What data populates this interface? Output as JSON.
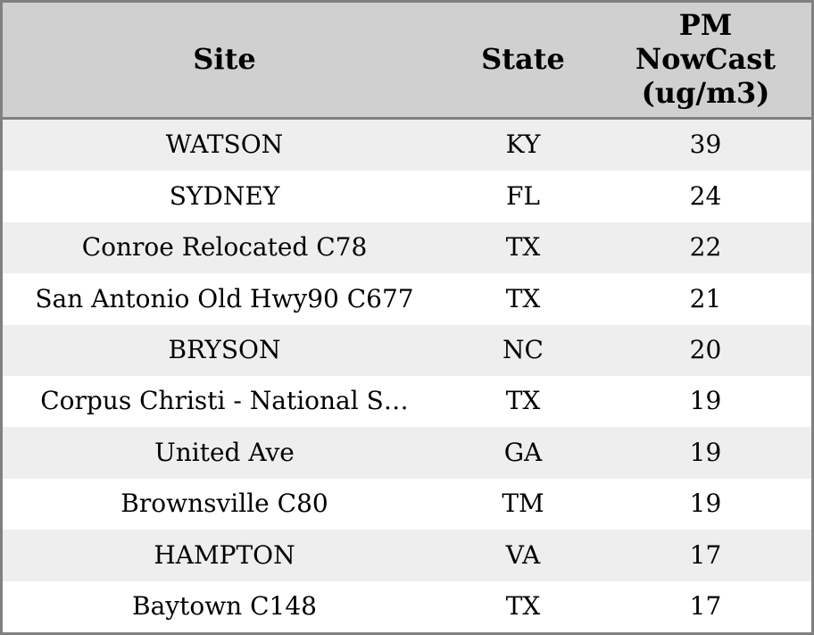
{
  "chart_data": {
    "type": "table",
    "columns": [
      "Site",
      "State",
      "PM NowCast (ug/m3)"
    ],
    "rows": [
      {
        "site": "WATSON",
        "state": "KY",
        "pm_nowcast": "39"
      },
      {
        "site": "SYDNEY",
        "state": "FL",
        "pm_nowcast": "24"
      },
      {
        "site": "Conroe Relocated C78",
        "state": "TX",
        "pm_nowcast": "22"
      },
      {
        "site": "San Antonio Old Hwy90 C677",
        "state": "TX",
        "pm_nowcast": "21"
      },
      {
        "site": "BRYSON",
        "state": "NC",
        "pm_nowcast": "20"
      },
      {
        "site": "Corpus Christi - National S…",
        "state": "TX",
        "pm_nowcast": "19"
      },
      {
        "site": "United Ave",
        "state": "GA",
        "pm_nowcast": "19"
      },
      {
        "site": "Brownsville C80",
        "state": "TM",
        "pm_nowcast": "19"
      },
      {
        "site": "HAMPTON",
        "state": "VA",
        "pm_nowcast": "17"
      },
      {
        "site": "Baytown C148",
        "state": "TX",
        "pm_nowcast": "17"
      }
    ],
    "colors": {
      "header_bg": "#d0d0d0",
      "row_alt_bg": "#eeeeee",
      "row_bg": "#ffffff",
      "border": "#808080",
      "text": "#000000"
    }
  }
}
